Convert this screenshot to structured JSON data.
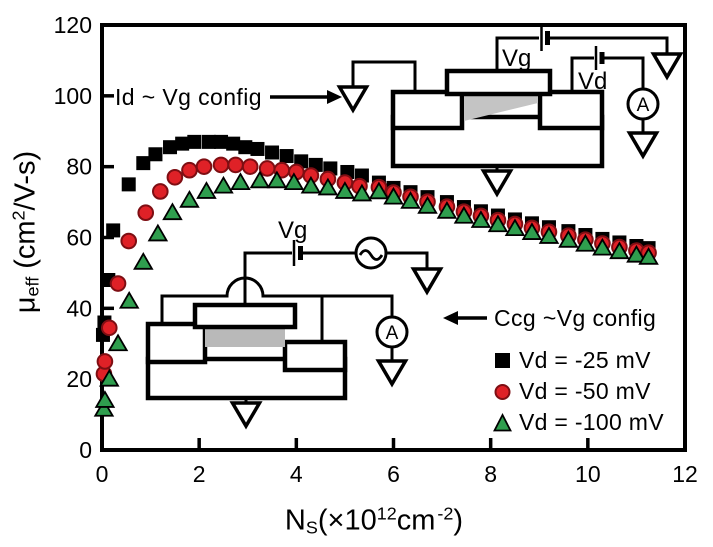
{
  "colors": {
    "axis": "#000000",
    "series_black": "#000000",
    "series_red": "#df2127",
    "series_red_outline": "#7e0e13",
    "series_green": "#2f9e4e",
    "channel_gray": "#c4c4c4",
    "gate_oxide_gray": "#b9b9b9"
  },
  "axes": {
    "y_label": {
      "sym": "μ",
      "sub": "eff",
      "open": " (cm",
      "exp": "2",
      "rest": "/V-s)"
    },
    "x_label": {
      "sym": "N",
      "sub": "S",
      "open": "(×10",
      "exp": "12",
      "unit": "cm",
      "unit_exp": "-2",
      "close": ")"
    }
  },
  "annotations": {
    "top_config_label": "Id ~ Vg config",
    "bottom_config_label": "Ccg ~Vg config"
  },
  "insets": {
    "top": {
      "gate_voltage_label": "Vg",
      "drain_voltage_label": "Vd",
      "ammeter_label": "A"
    },
    "bottom": {
      "gate_voltage_label": "Vg",
      "ammeter_label": "A"
    }
  },
  "legend": {
    "items": [
      {
        "label": "Vd = -25 mV",
        "marker": "square",
        "color": "#000000"
      },
      {
        "label": "Vd = -50 mV",
        "marker": "circle",
        "color": "#df2127"
      },
      {
        "label": "Vd = -100 mV",
        "marker": "triangle",
        "color": "#2f9e4e"
      }
    ]
  },
  "chart_data": {
    "type": "scatter",
    "title": "",
    "xlabel": "N_S (×10^12 cm^-2)",
    "ylabel": "μ_eff (cm^2/V-s)",
    "xlim": [
      0,
      12
    ],
    "ylim": [
      0,
      120
    ],
    "x_ticks": [
      0,
      2,
      4,
      6,
      8,
      10,
      12
    ],
    "y_ticks": [
      0,
      20,
      40,
      60,
      80,
      100,
      120
    ],
    "grid": false,
    "legend_position": "lower right",
    "series": [
      {
        "name": "Vd = -25 mV",
        "marker": "square",
        "color": "#000000",
        "points": [
          [
            0.02,
            32.5
          ],
          [
            0.05,
            36
          ],
          [
            0.13,
            48
          ],
          [
            0.23,
            62
          ],
          [
            0.55,
            75
          ],
          [
            0.85,
            81
          ],
          [
            1.1,
            83.5
          ],
          [
            1.4,
            85.5
          ],
          [
            1.65,
            86.5
          ],
          [
            1.9,
            87
          ],
          [
            2.2,
            87
          ],
          [
            2.45,
            87
          ],
          [
            2.7,
            86.5
          ],
          [
            2.95,
            85.5
          ],
          [
            3.2,
            85
          ],
          [
            3.5,
            84
          ],
          [
            3.8,
            83
          ],
          [
            4.1,
            81.5
          ],
          [
            4.4,
            80.5
          ],
          [
            4.7,
            79.5
          ],
          [
            5.05,
            78.5
          ],
          [
            5.35,
            77.5
          ],
          [
            5.7,
            75.5
          ],
          [
            6.0,
            74
          ],
          [
            6.35,
            72.8
          ],
          [
            6.7,
            71.4
          ],
          [
            7.1,
            70
          ],
          [
            7.45,
            68.6
          ],
          [
            7.8,
            67.4
          ],
          [
            8.15,
            66.2
          ],
          [
            8.5,
            65.1
          ],
          [
            8.85,
            64
          ],
          [
            9.2,
            62.9
          ],
          [
            9.6,
            61.8
          ],
          [
            9.95,
            60.7
          ],
          [
            10.3,
            59.6
          ],
          [
            10.65,
            58.6
          ],
          [
            11.0,
            57.6
          ],
          [
            11.25,
            57
          ]
        ]
      },
      {
        "name": "Vd = -50 mV",
        "marker": "circle",
        "color": "#df2127",
        "points": [
          [
            0.04,
            21.5
          ],
          [
            0.06,
            25
          ],
          [
            0.15,
            34.5
          ],
          [
            0.33,
            47
          ],
          [
            0.55,
            59
          ],
          [
            0.9,
            67
          ],
          [
            1.2,
            73
          ],
          [
            1.5,
            77
          ],
          [
            1.8,
            79
          ],
          [
            2.1,
            80
          ],
          [
            2.45,
            80.5
          ],
          [
            2.75,
            80.5
          ],
          [
            3.05,
            80
          ],
          [
            3.4,
            79.5
          ],
          [
            3.7,
            79
          ],
          [
            4.0,
            78.5
          ],
          [
            4.3,
            77.5
          ],
          [
            4.65,
            76.5
          ],
          [
            5.0,
            75.5
          ],
          [
            5.3,
            74.5
          ],
          [
            5.7,
            74.2
          ],
          [
            6.0,
            72.7
          ],
          [
            6.35,
            71.5
          ],
          [
            6.7,
            70.1
          ],
          [
            7.1,
            68.7
          ],
          [
            7.45,
            67.3
          ],
          [
            7.8,
            66.1
          ],
          [
            8.15,
            64.9
          ],
          [
            8.5,
            63.8
          ],
          [
            8.85,
            62.7
          ],
          [
            9.2,
            61.6
          ],
          [
            9.6,
            60.5
          ],
          [
            9.95,
            59.4
          ],
          [
            10.3,
            58.3
          ],
          [
            10.65,
            57.3
          ],
          [
            11.0,
            56.3
          ],
          [
            11.25,
            55.7
          ]
        ]
      },
      {
        "name": "Vd = -100 mV",
        "marker": "triangle",
        "color": "#2f9e4e",
        "points": [
          [
            0.04,
            11.5
          ],
          [
            0.06,
            14
          ],
          [
            0.15,
            20
          ],
          [
            0.33,
            30
          ],
          [
            0.56,
            42
          ],
          [
            0.85,
            53
          ],
          [
            1.15,
            61
          ],
          [
            1.45,
            67
          ],
          [
            1.8,
            70.5
          ],
          [
            2.15,
            73
          ],
          [
            2.5,
            74.5
          ],
          [
            2.85,
            75.5
          ],
          [
            3.25,
            76
          ],
          [
            3.6,
            76
          ],
          [
            3.95,
            75.5
          ],
          [
            4.3,
            74.5
          ],
          [
            4.65,
            74
          ],
          [
            5.0,
            73
          ],
          [
            5.35,
            72.3
          ],
          [
            5.7,
            72.9
          ],
          [
            6.0,
            71.4
          ],
          [
            6.35,
            70.2
          ],
          [
            6.7,
            68.8
          ],
          [
            7.1,
            67.4
          ],
          [
            7.45,
            66
          ],
          [
            7.8,
            64.8
          ],
          [
            8.15,
            63.6
          ],
          [
            8.5,
            62.5
          ],
          [
            8.85,
            61.4
          ],
          [
            9.2,
            60.3
          ],
          [
            9.6,
            59.2
          ],
          [
            9.95,
            58.1
          ],
          [
            10.3,
            57
          ],
          [
            10.65,
            56
          ],
          [
            11.0,
            55
          ],
          [
            11.25,
            54.4
          ]
        ]
      }
    ]
  }
}
